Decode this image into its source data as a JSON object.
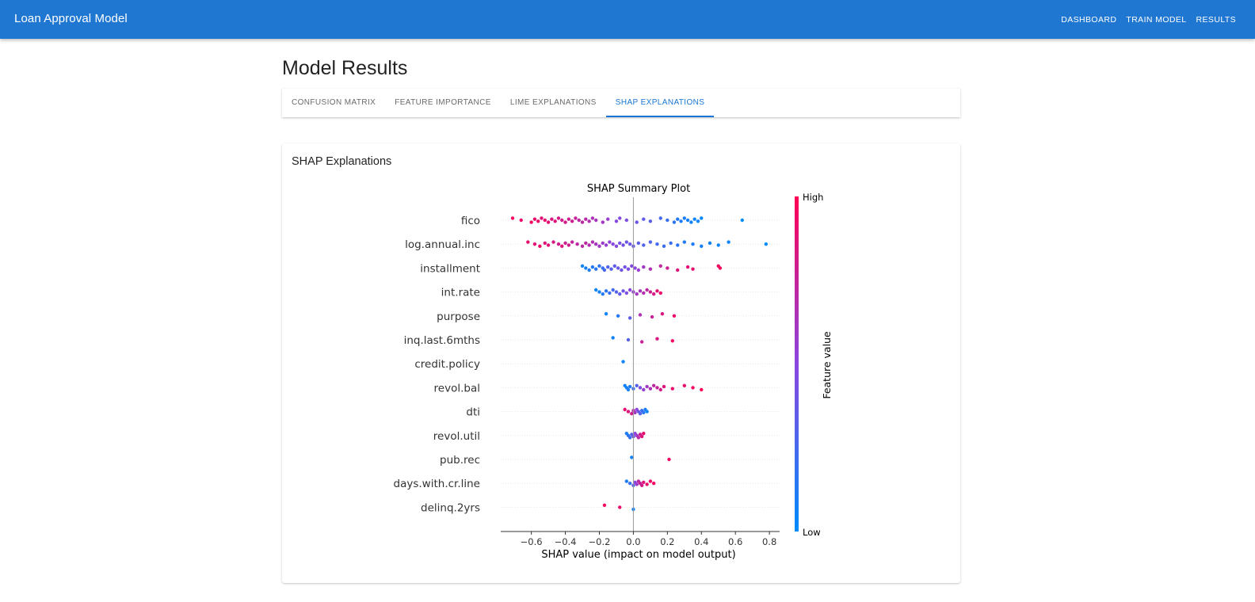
{
  "app": {
    "title": "Loan Approval Model",
    "nav": [
      "DASHBOARD",
      "TRAIN MODEL",
      "RESULTS"
    ],
    "accent": "#1f77d2"
  },
  "page": {
    "title": "Model Results",
    "tabs": [
      "CONFUSION MATRIX",
      "FEATURE IMPORTANCE",
      "LIME EXPLANATIONS",
      "SHAP EXPLANATIONS"
    ],
    "active_tab": "SHAP EXPLANATIONS"
  },
  "card": {
    "title": "SHAP Explanations"
  },
  "chart_data": {
    "type": "scatter",
    "title": "SHAP Summary Plot",
    "xlabel": "SHAP value (impact on model output)",
    "colorbar": {
      "label": "Feature value",
      "high": "High",
      "low": "Low",
      "high_color": "#ff0052",
      "low_color": "#008bfb"
    },
    "xlim": [
      -0.78,
      0.86
    ],
    "xticks": [
      "−0.6",
      "−0.4",
      "−0.2",
      "0.0",
      "0.2",
      "0.4",
      "0.6",
      "0.8"
    ],
    "xtick_values": [
      -0.6,
      -0.4,
      -0.2,
      0.0,
      0.2,
      0.4,
      0.6,
      0.8
    ],
    "features": [
      {
        "name": "fico",
        "points": [
          [
            -0.71,
            0.95
          ],
          [
            -0.66,
            0.92
          ],
          [
            -0.6,
            0.95
          ],
          [
            -0.58,
            0.9
          ],
          [
            -0.56,
            0.92
          ],
          [
            -0.54,
            0.88
          ],
          [
            -0.52,
            0.9
          ],
          [
            -0.5,
            0.88
          ],
          [
            -0.48,
            0.85
          ],
          [
            -0.46,
            0.85
          ],
          [
            -0.44,
            0.82
          ],
          [
            -0.42,
            0.8
          ],
          [
            -0.4,
            0.82
          ],
          [
            -0.38,
            0.78
          ],
          [
            -0.36,
            0.78
          ],
          [
            -0.34,
            0.75
          ],
          [
            -0.32,
            0.72
          ],
          [
            -0.3,
            0.72
          ],
          [
            -0.28,
            0.7
          ],
          [
            -0.26,
            0.68
          ],
          [
            -0.24,
            0.65
          ],
          [
            -0.22,
            0.62
          ],
          [
            -0.18,
            0.6
          ],
          [
            -0.15,
            0.56
          ],
          [
            -0.1,
            0.5
          ],
          [
            -0.08,
            0.48
          ],
          [
            -0.04,
            0.45
          ],
          [
            0.02,
            0.4
          ],
          [
            0.06,
            0.35
          ],
          [
            0.1,
            0.32
          ],
          [
            0.16,
            0.25
          ],
          [
            0.2,
            0.2
          ],
          [
            0.24,
            0.15
          ],
          [
            0.26,
            0.12
          ],
          [
            0.28,
            0.1
          ],
          [
            0.3,
            0.1
          ],
          [
            0.32,
            0.08
          ],
          [
            0.34,
            0.06
          ],
          [
            0.36,
            0.05
          ],
          [
            0.38,
            0.04
          ],
          [
            0.4,
            0.03
          ],
          [
            0.64,
            0.0
          ]
        ]
      },
      {
        "name": "log.annual.inc",
        "points": [
          [
            -0.62,
            0.9
          ],
          [
            -0.58,
            0.88
          ],
          [
            -0.55,
            0.92
          ],
          [
            -0.52,
            0.85
          ],
          [
            -0.5,
            0.88
          ],
          [
            -0.47,
            0.82
          ],
          [
            -0.44,
            0.8
          ],
          [
            -0.42,
            0.85
          ],
          [
            -0.4,
            0.78
          ],
          [
            -0.38,
            0.8
          ],
          [
            -0.36,
            0.75
          ],
          [
            -0.33,
            0.72
          ],
          [
            -0.3,
            0.7
          ],
          [
            -0.28,
            0.72
          ],
          [
            -0.26,
            0.68
          ],
          [
            -0.24,
            0.66
          ],
          [
            -0.22,
            0.62
          ],
          [
            -0.2,
            0.6
          ],
          [
            -0.18,
            0.58
          ],
          [
            -0.16,
            0.56
          ],
          [
            -0.14,
            0.52
          ],
          [
            -0.12,
            0.5
          ],
          [
            -0.1,
            0.48
          ],
          [
            -0.08,
            0.45
          ],
          [
            -0.06,
            0.42
          ],
          [
            -0.04,
            0.4
          ],
          [
            -0.02,
            0.38
          ],
          [
            0.0,
            0.36
          ],
          [
            0.03,
            0.33
          ],
          [
            0.06,
            0.3
          ],
          [
            0.1,
            0.28
          ],
          [
            0.14,
            0.25
          ],
          [
            0.18,
            0.22
          ],
          [
            0.22,
            0.2
          ],
          [
            0.26,
            0.15
          ],
          [
            0.3,
            0.12
          ],
          [
            0.35,
            0.1
          ],
          [
            0.4,
            0.08
          ],
          [
            0.45,
            0.06
          ],
          [
            0.5,
            0.05
          ],
          [
            0.56,
            0.04
          ],
          [
            0.78,
            0.0
          ]
        ]
      },
      {
        "name": "installment",
        "points": [
          [
            -0.3,
            0.05
          ],
          [
            -0.28,
            0.08
          ],
          [
            -0.26,
            0.1
          ],
          [
            -0.24,
            0.12
          ],
          [
            -0.22,
            0.15
          ],
          [
            -0.2,
            0.18
          ],
          [
            -0.18,
            0.2
          ],
          [
            -0.17,
            0.25
          ],
          [
            -0.15,
            0.3
          ],
          [
            -0.13,
            0.32
          ],
          [
            -0.11,
            0.35
          ],
          [
            -0.09,
            0.38
          ],
          [
            -0.07,
            0.4
          ],
          [
            -0.05,
            0.42
          ],
          [
            -0.03,
            0.45
          ],
          [
            -0.01,
            0.48
          ],
          [
            0.01,
            0.5
          ],
          [
            0.03,
            0.55
          ],
          [
            0.06,
            0.6
          ],
          [
            0.1,
            0.65
          ],
          [
            0.16,
            0.72
          ],
          [
            0.2,
            0.78
          ],
          [
            0.26,
            0.85
          ],
          [
            0.32,
            0.88
          ],
          [
            0.35,
            0.9
          ],
          [
            0.5,
            0.95
          ],
          [
            0.51,
            0.97
          ]
        ]
      },
      {
        "name": "int.rate",
        "points": [
          [
            -0.22,
            0.05
          ],
          [
            -0.2,
            0.08
          ],
          [
            -0.18,
            0.12
          ],
          [
            -0.16,
            0.15
          ],
          [
            -0.14,
            0.2
          ],
          [
            -0.12,
            0.25
          ],
          [
            -0.1,
            0.3
          ],
          [
            -0.08,
            0.35
          ],
          [
            -0.06,
            0.4
          ],
          [
            -0.04,
            0.45
          ],
          [
            -0.02,
            0.5
          ],
          [
            0.0,
            0.55
          ],
          [
            0.02,
            0.6
          ],
          [
            0.04,
            0.62
          ],
          [
            0.06,
            0.68
          ],
          [
            0.08,
            0.72
          ],
          [
            0.1,
            0.78
          ],
          [
            0.12,
            0.82
          ],
          [
            0.14,
            0.88
          ],
          [
            0.16,
            0.92
          ]
        ]
      },
      {
        "name": "purpose",
        "points": [
          [
            -0.16,
            0.05
          ],
          [
            -0.09,
            0.12
          ],
          [
            -0.02,
            0.35
          ],
          [
            0.04,
            0.65
          ],
          [
            0.11,
            0.75
          ],
          [
            0.17,
            0.85
          ],
          [
            0.24,
            0.92
          ]
        ]
      },
      {
        "name": "inq.last.6mths",
        "points": [
          [
            -0.12,
            0.05
          ],
          [
            -0.03,
            0.3
          ],
          [
            0.05,
            0.75
          ],
          [
            0.14,
            0.85
          ],
          [
            0.23,
            0.95
          ]
        ]
      },
      {
        "name": "credit.policy",
        "points": [
          [
            -0.06,
            0.05
          ]
        ]
      },
      {
        "name": "revol.bal",
        "points": [
          [
            -0.05,
            0.05
          ],
          [
            -0.04,
            0.08
          ],
          [
            -0.03,
            0.1
          ],
          [
            -0.02,
            0.12
          ],
          [
            0.0,
            0.2
          ],
          [
            0.02,
            0.3
          ],
          [
            0.04,
            0.45
          ],
          [
            0.06,
            0.55
          ],
          [
            0.08,
            0.6
          ],
          [
            0.1,
            0.65
          ],
          [
            0.12,
            0.7
          ],
          [
            0.14,
            0.75
          ],
          [
            0.16,
            0.8
          ],
          [
            0.18,
            0.85
          ],
          [
            0.23,
            0.9
          ],
          [
            0.3,
            0.92
          ],
          [
            0.35,
            0.95
          ],
          [
            0.4,
            0.97
          ]
        ]
      },
      {
        "name": "dti",
        "points": [
          [
            -0.05,
            0.9
          ],
          [
            -0.03,
            0.85
          ],
          [
            -0.01,
            0.8
          ],
          [
            0.0,
            0.7
          ],
          [
            0.01,
            0.6
          ],
          [
            0.02,
            0.5
          ],
          [
            0.03,
            0.4
          ],
          [
            0.04,
            0.3
          ],
          [
            0.05,
            0.2
          ],
          [
            0.06,
            0.15
          ],
          [
            0.07,
            0.1
          ],
          [
            0.08,
            0.05
          ]
        ]
      },
      {
        "name": "revol.util",
        "points": [
          [
            -0.04,
            0.1
          ],
          [
            -0.03,
            0.15
          ],
          [
            -0.02,
            0.2
          ],
          [
            -0.01,
            0.3
          ],
          [
            0.0,
            0.4
          ],
          [
            0.01,
            0.5
          ],
          [
            0.02,
            0.6
          ],
          [
            0.03,
            0.7
          ],
          [
            0.04,
            0.8
          ],
          [
            0.05,
            0.85
          ],
          [
            0.06,
            0.9
          ]
        ]
      },
      {
        "name": "pub.rec",
        "points": [
          [
            -0.01,
            0.05
          ],
          [
            0.21,
            0.95
          ]
        ]
      },
      {
        "name": "days.with.cr.line",
        "points": [
          [
            -0.04,
            0.1
          ],
          [
            -0.02,
            0.2
          ],
          [
            0.0,
            0.3
          ],
          [
            0.01,
            0.5
          ],
          [
            0.02,
            0.6
          ],
          [
            0.03,
            0.7
          ],
          [
            0.04,
            0.75
          ],
          [
            0.05,
            0.8
          ],
          [
            0.06,
            0.85
          ],
          [
            0.08,
            0.9
          ],
          [
            0.1,
            0.92
          ],
          [
            0.12,
            0.95
          ]
        ]
      },
      {
        "name": "delinq.2yrs",
        "points": [
          [
            -0.17,
            0.95
          ],
          [
            -0.08,
            0.92
          ],
          [
            0.0,
            0.05
          ]
        ]
      }
    ]
  }
}
